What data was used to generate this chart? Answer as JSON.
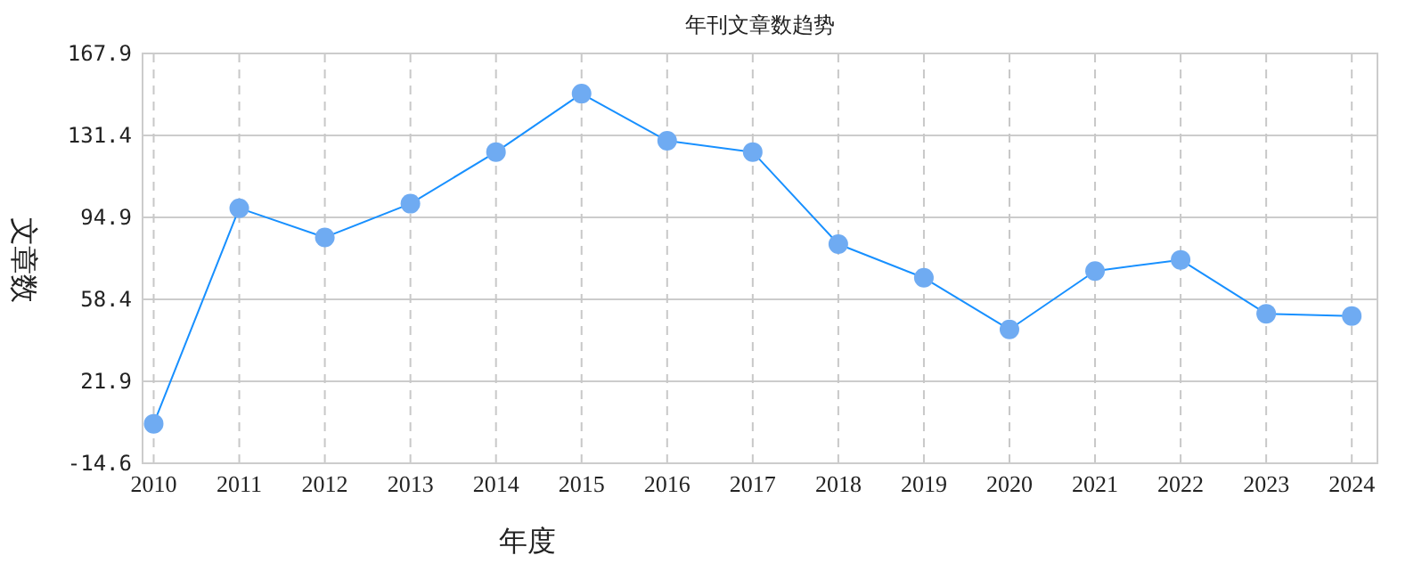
{
  "chart_data": {
    "type": "line",
    "title": "年刊文章数趋势",
    "xlabel": "年度",
    "ylabel": "文章数",
    "categories": [
      "2010",
      "2011",
      "2012",
      "2013",
      "2014",
      "2015",
      "2016",
      "2017",
      "2018",
      "2019",
      "2020",
      "2021",
      "2022",
      "2023",
      "2024"
    ],
    "series": [
      {
        "color": "#6fabf2",
        "values": [
          3,
          99,
          86,
          101,
          124,
          150,
          129,
          124,
          83,
          68,
          45,
          71,
          76,
          52,
          51
        ]
      }
    ],
    "ylim": [
      -14.6,
      167.9
    ],
    "yticks": [
      -14.6,
      21.9,
      58.4,
      94.9,
      131.4,
      167.9
    ],
    "grid": true,
    "marker": "circle",
    "line_style": "solid"
  }
}
